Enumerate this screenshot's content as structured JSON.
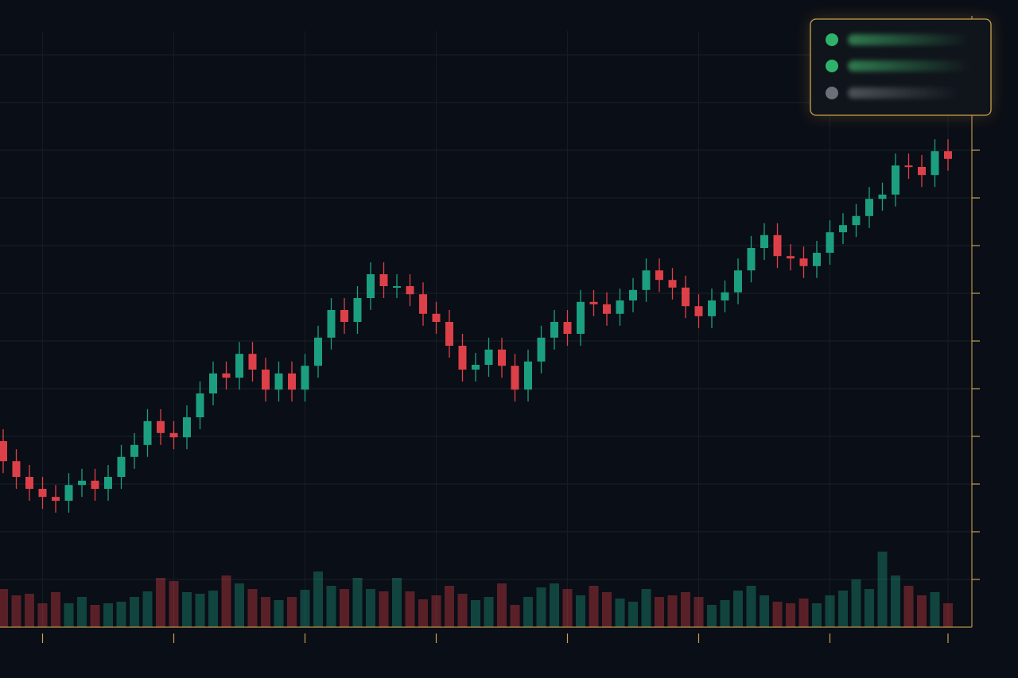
{
  "chart_data": {
    "type": "candlestick",
    "x": [
      0,
      1,
      2,
      3,
      4,
      5,
      6,
      7,
      8,
      9,
      10,
      11,
      12,
      13,
      14,
      15,
      16,
      17,
      18,
      19,
      20,
      21,
      22,
      23,
      24,
      25,
      26,
      27,
      28,
      29,
      30,
      31,
      32,
      33,
      34,
      35,
      36,
      37,
      38,
      39,
      40,
      41,
      42,
      43,
      44,
      45,
      46,
      47,
      48,
      49,
      50,
      51,
      52,
      53,
      54,
      55,
      56,
      57,
      58,
      59,
      60,
      61,
      62,
      63,
      64,
      65,
      66,
      67,
      68,
      69,
      70,
      71,
      72
    ],
    "open": [
      3.9,
      3.48,
      3.15,
      2.9,
      2.73,
      2.65,
      2.98,
      3.07,
      2.9,
      3.15,
      3.57,
      3.82,
      4.32,
      4.07,
      3.98,
      4.4,
      4.9,
      5.32,
      5.23,
      5.73,
      5.4,
      4.98,
      5.32,
      4.98,
      5.48,
      6.07,
      6.65,
      6.4,
      6.9,
      7.4,
      7.15,
      7.15,
      6.98,
      6.57,
      6.4,
      5.9,
      5.4,
      5.5,
      5.82,
      5.48,
      4.98,
      5.57,
      6.07,
      6.4,
      6.15,
      6.82,
      6.77,
      6.57,
      6.85,
      7.07,
      7.48,
      7.28,
      7.12,
      6.73,
      6.52,
      6.85,
      7.02,
      7.48,
      7.95,
      8.22,
      7.78,
      7.73,
      7.57,
      7.85,
      8.28,
      8.43,
      8.62,
      8.98,
      9.07,
      9.68,
      9.65,
      9.48,
      9.98
    ],
    "high": [
      4.15,
      3.73,
      3.4,
      3.15,
      2.98,
      3.23,
      3.32,
      3.32,
      3.4,
      3.82,
      4.07,
      4.57,
      4.57,
      4.32,
      4.65,
      5.15,
      5.57,
      5.57,
      5.98,
      5.98,
      5.65,
      5.57,
      5.57,
      5.73,
      6.32,
      6.9,
      6.9,
      7.15,
      7.65,
      7.65,
      7.4,
      7.4,
      7.23,
      6.82,
      6.65,
      6.15,
      5.75,
      6.07,
      6.07,
      5.73,
      5.82,
      6.32,
      6.65,
      6.65,
      7.07,
      7.07,
      7.02,
      7.1,
      7.32,
      7.73,
      7.73,
      7.53,
      7.37,
      6.98,
      7.1,
      7.27,
      7.73,
      8.2,
      8.47,
      8.47,
      8.03,
      7.98,
      8.1,
      8.53,
      8.68,
      8.87,
      9.23,
      9.32,
      9.93,
      9.93,
      9.9,
      10.23,
      10.23
    ],
    "low": [
      3.23,
      2.9,
      2.65,
      2.48,
      2.4,
      2.4,
      2.73,
      2.65,
      2.65,
      2.9,
      3.32,
      3.57,
      3.82,
      3.73,
      3.73,
      4.15,
      4.65,
      4.98,
      4.98,
      5.15,
      4.73,
      4.73,
      4.73,
      4.73,
      5.23,
      5.82,
      6.15,
      6.15,
      6.65,
      6.9,
      6.9,
      6.73,
      6.32,
      6.15,
      5.65,
      5.15,
      5.15,
      5.25,
      5.23,
      4.73,
      4.73,
      5.32,
      5.82,
      5.9,
      5.9,
      6.52,
      6.32,
      6.32,
      6.6,
      6.82,
      7.03,
      6.87,
      6.48,
      6.27,
      6.27,
      6.6,
      6.77,
      7.23,
      7.7,
      7.53,
      7.48,
      7.32,
      7.32,
      7.6,
      8.03,
      8.18,
      8.37,
      8.73,
      8.82,
      9.4,
      9.23,
      9.23,
      9.57
    ],
    "close": [
      3.48,
      3.15,
      2.9,
      2.73,
      2.65,
      2.98,
      3.07,
      2.9,
      3.15,
      3.57,
      3.82,
      4.32,
      4.07,
      3.98,
      4.4,
      4.9,
      5.32,
      5.23,
      5.73,
      5.4,
      4.98,
      5.32,
      4.98,
      5.48,
      6.07,
      6.65,
      6.4,
      6.9,
      7.4,
      7.15,
      7.15,
      6.98,
      6.57,
      6.4,
      5.9,
      5.4,
      5.5,
      5.82,
      5.48,
      4.98,
      5.57,
      6.07,
      6.4,
      6.15,
      6.82,
      6.77,
      6.57,
      6.85,
      7.07,
      7.48,
      7.28,
      7.12,
      6.73,
      6.52,
      6.85,
      7.02,
      7.48,
      7.95,
      8.22,
      7.78,
      7.73,
      7.57,
      7.85,
      8.28,
      8.43,
      8.62,
      8.98,
      9.07,
      9.68,
      9.65,
      9.48,
      9.98,
      9.82
    ],
    "volume": [
      48,
      40,
      42,
      30,
      44,
      30,
      38,
      28,
      30,
      32,
      38,
      45,
      62,
      58,
      44,
      42,
      46,
      65,
      55,
      48,
      38,
      34,
      38,
      47,
      70,
      52,
      48,
      62,
      48,
      45,
      62,
      45,
      35,
      40,
      52,
      42,
      34,
      38,
      55,
      28,
      38,
      50,
      55,
      48,
      40,
      52,
      44,
      36,
      32,
      48,
      38,
      40,
      44,
      38,
      28,
      34,
      46,
      52,
      40,
      32,
      30,
      36,
      30,
      40,
      46,
      60,
      48,
      95,
      65,
      52,
      40,
      44,
      30
    ],
    "xlim": [
      -0.3,
      74
    ],
    "xticks": [
      3,
      13,
      23,
      33,
      43,
      53,
      63,
      72
    ],
    "ylim": [
      0,
      12.5
    ],
    "yticks": [
      1,
      2,
      3,
      4,
      5,
      6,
      7,
      8,
      9,
      10,
      11,
      12
    ],
    "vlim": [
      0,
      100
    ],
    "up_color": "#1c9f80",
    "down_color": "#dd4048",
    "grid": true
  }
}
